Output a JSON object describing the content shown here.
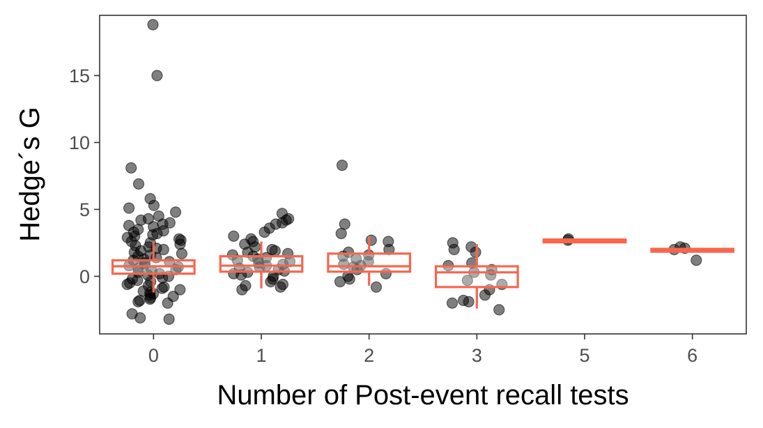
{
  "chart_data": {
    "type": "box",
    "xlabel": "Number of Post-event recall tests",
    "ylabel": "Hedge´s G",
    "ylim": [
      -4.3,
      19.5
    ],
    "yticks": [
      0,
      5,
      10,
      15
    ],
    "categories": [
      "0",
      "1",
      "2",
      "3",
      "5",
      "6"
    ],
    "grid": false,
    "legend": "none",
    "colors": {
      "box": "#f8664d",
      "points": "#000000",
      "frame": "#333333"
    },
    "boxes": [
      {
        "category": "0",
        "lower_whisker": -1.2,
        "q1": 0.2,
        "median": 0.75,
        "q3": 1.2,
        "upper_whisker": 2.6
      },
      {
        "category": "1",
        "lower_whisker": -0.9,
        "q1": 0.35,
        "median": 0.8,
        "q3": 1.5,
        "upper_whisker": 2.6
      },
      {
        "category": "2",
        "lower_whisker": -0.7,
        "q1": 0.35,
        "median": 0.75,
        "q3": 1.7,
        "upper_whisker": 3.0
      },
      {
        "category": "3",
        "lower_whisker": -2.4,
        "q1": -0.8,
        "median": 0.3,
        "q3": 0.75,
        "upper_whisker": 2.4
      },
      {
        "category": "5",
        "lower_whisker": 2.65,
        "q1": 2.65,
        "median": 2.7,
        "q3": 2.75,
        "upper_whisker": 2.75
      },
      {
        "category": "6",
        "lower_whisker": 1.85,
        "q1": 1.85,
        "median": 1.95,
        "q3": 2.05,
        "upper_whisker": 2.05
      }
    ],
    "points": [
      {
        "category": "0",
        "values": [
          18.8,
          15.0,
          8.1,
          6.9,
          5.8,
          5.3,
          5.1,
          4.8,
          4.5,
          4.3,
          4.2,
          4.0,
          3.9,
          3.8,
          3.7,
          3.5,
          3.4,
          3.3,
          3.2,
          3.1,
          3.0,
          2.9,
          2.8,
          2.7,
          2.6,
          2.5,
          2.4,
          2.3,
          2.2,
          2.1,
          2.0,
          1.9,
          1.8,
          1.7,
          1.6,
          1.5,
          1.4,
          1.3,
          1.2,
          1.1,
          1.0,
          0.9,
          0.8,
          0.7,
          0.6,
          0.5,
          0.4,
          0.3,
          0.2,
          0.1,
          0.0,
          -0.1,
          -0.2,
          -0.3,
          -0.4,
          -0.5,
          -0.6,
          -0.7,
          -0.8,
          -0.9,
          -1.0,
          -1.1,
          -1.2,
          -1.3,
          -1.4,
          -1.5,
          -1.6,
          -1.7,
          -1.8,
          -1.9,
          -2.0,
          -2.8,
          -3.1,
          -3.2
        ]
      },
      {
        "category": "1",
        "values": [
          4.7,
          4.3,
          4.2,
          4.0,
          3.9,
          3.6,
          3.3,
          3.0,
          2.8,
          2.6,
          2.4,
          2.2,
          2.0,
          1.9,
          1.8,
          1.7,
          1.6,
          1.5,
          1.4,
          1.3,
          1.2,
          1.1,
          1.0,
          0.9,
          0.8,
          0.7,
          0.6,
          0.5,
          0.4,
          0.3,
          0.2,
          0.1,
          0.0,
          -0.2,
          -0.4,
          -0.6,
          -0.7,
          -0.8,
          -1.0
        ]
      },
      {
        "category": "2",
        "values": [
          8.3,
          3.9,
          3.2,
          2.7,
          2.6,
          2.0,
          1.8,
          1.6,
          1.5,
          1.3,
          1.1,
          0.9,
          0.8,
          0.7,
          0.5,
          0.2,
          0.0,
          -0.2,
          -0.4,
          -0.8
        ]
      },
      {
        "category": "3",
        "values": [
          2.5,
          2.2,
          2.0,
          1.8,
          1.0,
          0.8,
          0.5,
          0.3,
          0.1,
          -0.3,
          -0.6,
          -1.0,
          -1.4,
          -1.8,
          -1.9,
          -2.0,
          -2.5
        ]
      },
      {
        "category": "5",
        "values": [
          2.8,
          2.7
        ]
      },
      {
        "category": "6",
        "values": [
          2.2,
          2.1,
          2.0,
          1.2
        ]
      }
    ]
  }
}
